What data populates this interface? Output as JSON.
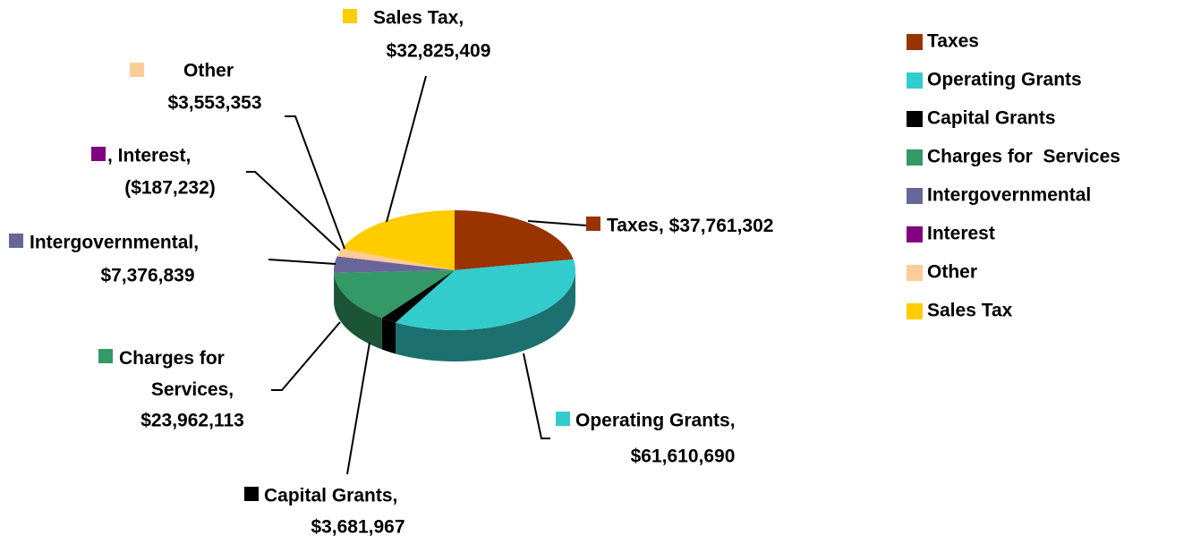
{
  "chart_data": {
    "type": "pie3d",
    "categories": [
      "Taxes",
      "Operating Grants",
      "Capital Grants",
      "Charges for  Services",
      "Intergovernmental",
      "Interest",
      "Other",
      "Sales Tax"
    ],
    "label_names": [
      "Taxes,",
      "Operating Grants,",
      "Capital Grants,",
      "Charges for Services,",
      "Intergovernmental,",
      ", Interest,",
      "Other",
      "Sales Tax,"
    ],
    "values": [
      37761302,
      61610690,
      3681967,
      23962113,
      7376839,
      -187232,
      3553353,
      32825409
    ],
    "value_labels": [
      "$37,761,302",
      "$61,610,690",
      "$3,681,967",
      "$23,962,113",
      "$7,376,839",
      "($187,232)",
      "$3,553,353",
      "$32,825,409"
    ],
    "colors": [
      "#993300",
      "#33cccc",
      "#000000",
      "#339966",
      "#666699",
      "#800080",
      "#ffcc99",
      "#ffcc00"
    ],
    "legend": "right"
  }
}
